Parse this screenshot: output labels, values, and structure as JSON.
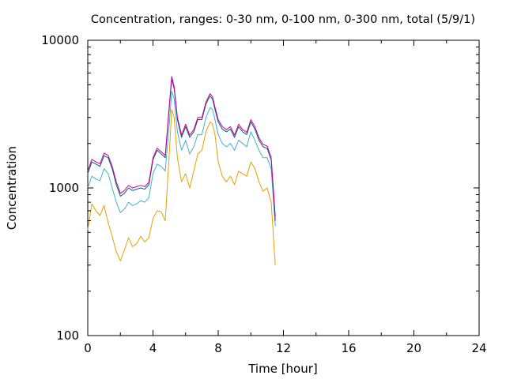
{
  "chart_data": {
    "type": "line",
    "title": "Concentration, ranges: 0-30 nm, 0-100 nm, 0-300 nm, total (5/9/1)",
    "xlabel": "Time [hour]",
    "ylabel": "Concentration",
    "xlim": [
      0,
      24
    ],
    "ylim": [
      100,
      10000
    ],
    "yscale": "log",
    "grid": false,
    "legend": "none",
    "x_ticks": [
      0,
      4,
      8,
      12,
      16,
      20,
      24
    ],
    "x_tick_labels": [
      "0",
      "4",
      "8",
      "12",
      "16",
      "20",
      "24"
    ],
    "y_ticks": [
      100,
      1000,
      10000
    ],
    "y_tick_labels": [
      "100",
      "1000",
      "10000"
    ],
    "x": [
      0.0,
      0.25,
      0.5,
      0.75,
      1.0,
      1.25,
      1.5,
      1.75,
      2.0,
      2.25,
      2.5,
      2.75,
      3.0,
      3.25,
      3.5,
      3.75,
      4.0,
      4.25,
      4.5,
      4.75,
      5.0,
      5.15,
      5.3,
      5.5,
      5.75,
      6.0,
      6.25,
      6.5,
      6.75,
      7.0,
      7.25,
      7.5,
      7.65,
      7.8,
      8.0,
      8.25,
      8.5,
      8.75,
      9.0,
      9.25,
      9.5,
      9.75,
      10.0,
      10.25,
      10.5,
      10.75,
      11.0,
      11.25,
      11.5
    ],
    "series": [
      {
        "color": "#e6a000",
        "values": [
          520,
          780,
          700,
          650,
          760,
          580,
          470,
          370,
          320,
          380,
          460,
          400,
          420,
          470,
          430,
          460,
          620,
          700,
          690,
          600,
          1700,
          3400,
          3000,
          1600,
          1100,
          1250,
          1000,
          1300,
          1700,
          1800,
          2400,
          2800,
          2700,
          2300,
          1500,
          1200,
          1100,
          1200,
          1050,
          1300,
          1250,
          1200,
          1500,
          1350,
          1100,
          950,
          1000,
          800,
          300
        ]
      },
      {
        "color": "#40b0d0",
        "values": [
          1000,
          1200,
          1150,
          1120,
          1350,
          1250,
          1000,
          800,
          680,
          720,
          800,
          760,
          780,
          820,
          800,
          860,
          1250,
          1450,
          1400,
          1300,
          2700,
          4500,
          4000,
          2400,
          1800,
          2100,
          1700,
          1900,
          2300,
          2300,
          3000,
          3500,
          3400,
          2900,
          2300,
          2000,
          1900,
          2000,
          1800,
          2100,
          2000,
          1900,
          2400,
          2100,
          1800,
          1600,
          1600,
          1350,
          550
        ]
      },
      {
        "color": "#006080",
        "values": [
          1250,
          1500,
          1450,
          1400,
          1650,
          1600,
          1350,
          1050,
          880,
          920,
          1000,
          960,
          980,
          1000,
          980,
          1050,
          1550,
          1800,
          1700,
          1600,
          3500,
          5500,
          4700,
          2900,
          2200,
          2600,
          2200,
          2400,
          2900,
          2900,
          3700,
          4200,
          4000,
          3400,
          2800,
          2500,
          2400,
          2500,
          2200,
          2600,
          2400,
          2300,
          2800,
          2500,
          2100,
          1900,
          1850,
          1550,
          600
        ]
      },
      {
        "color": "#d0008f",
        "values": [
          1300,
          1560,
          1500,
          1460,
          1720,
          1660,
          1400,
          1100,
          920,
          960,
          1040,
          1000,
          1020,
          1040,
          1020,
          1090,
          1600,
          1860,
          1760,
          1660,
          3600,
          5700,
          4850,
          3000,
          2280,
          2700,
          2280,
          2480,
          3000,
          3000,
          3820,
          4350,
          4150,
          3520,
          2900,
          2600,
          2480,
          2600,
          2280,
          2700,
          2480,
          2380,
          2900,
          2600,
          2180,
          1970,
          1920,
          1600,
          640
        ]
      }
    ]
  }
}
